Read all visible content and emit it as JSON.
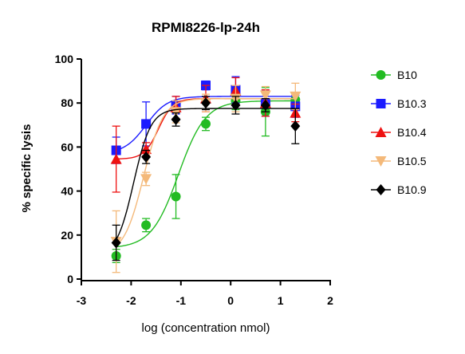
{
  "chart_data": {
    "type": "scatter",
    "title": "RPMI8226-lp-24h",
    "xlabel": "log (concentration nmol)",
    "ylabel": "% specific lysis",
    "xlim": [
      -3,
      2
    ],
    "ylim": [
      0,
      100
    ],
    "xticks": [
      "-3",
      "-2",
      "-1",
      "0",
      "1",
      "2"
    ],
    "yticks": [
      "0",
      "20",
      "40",
      "60",
      "80",
      "100"
    ],
    "legend_position": "right",
    "series": [
      {
        "name": "B10",
        "color": "#22bb22",
        "marker": "circle",
        "x": [
          -2.3,
          -1.7,
          -1.1,
          -0.5,
          0.1,
          0.7,
          1.3
        ],
        "y": [
          10.5,
          24.5,
          37.5,
          70.5,
          81,
          76,
          81.5
        ],
        "err": [
          3,
          3,
          10,
          3,
          4,
          11,
          3
        ],
        "fit": {
          "bottom": 14,
          "top": 81,
          "logEC50": -1.05,
          "hill": 1.6
        }
      },
      {
        "name": "B10.3",
        "color": "#1b1bff",
        "marker": "square",
        "x": [
          -2.3,
          -1.7,
          -1.1,
          -0.5,
          0.1,
          0.7,
          1.3
        ],
        "y": [
          58.5,
          70.5,
          79,
          88,
          86,
          80,
          78.5
        ],
        "err": [
          6,
          10,
          4,
          2,
          6,
          6,
          5
        ],
        "fit": {
          "bottom": 57,
          "top": 83,
          "logEC50": -1.7,
          "hill": 2.0
        }
      },
      {
        "name": "B10.4",
        "color": "#ee1111",
        "marker": "triangle-up",
        "x": [
          -2.3,
          -1.7,
          -1.1,
          -0.5,
          0.1,
          0.7,
          1.3
        ],
        "y": [
          54.5,
          59,
          78,
          82,
          85.5,
          80,
          75.5
        ],
        "err": [
          15,
          3,
          5,
          6,
          6,
          6,
          4
        ],
        "fit": {
          "bottom": 54.5,
          "top": 82,
          "logEC50": -1.45,
          "hill": 3.0
        }
      },
      {
        "name": "B10.5",
        "color": "#f4b97a",
        "marker": "triangle-down",
        "x": [
          -2.3,
          -1.7,
          -1.1,
          -0.5,
          0.1,
          0.7,
          1.3
        ],
        "y": [
          17,
          45.5,
          76,
          80,
          82,
          83.5,
          83
        ],
        "err": [
          14,
          3,
          5,
          4,
          6,
          4,
          6
        ],
        "fit": {
          "bottom": 11,
          "top": 82,
          "logEC50": -1.75,
          "hill": 2.2
        }
      },
      {
        "name": "B10.9",
        "color": "#000000",
        "marker": "diamond",
        "x": [
          -2.3,
          -1.7,
          -1.1,
          -0.5,
          0.1,
          0.7,
          1.3
        ],
        "y": [
          16.5,
          55.5,
          72.5,
          80,
          79,
          79,
          69.5
        ],
        "err": [
          8,
          3,
          3,
          3,
          4,
          3,
          8
        ],
        "fit": {
          "bottom": 10,
          "top": 77.5,
          "logEC50": -1.95,
          "hill": 2.5
        }
      }
    ]
  }
}
